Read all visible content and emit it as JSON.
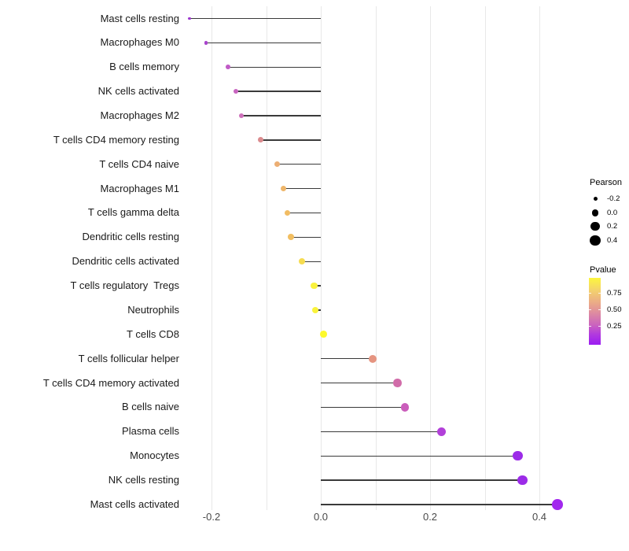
{
  "chart_data": {
    "type": "lollipop",
    "title": "",
    "xlabel": "",
    "ylabel": "",
    "x_ticks": [
      -0.2,
      0.0,
      0.2,
      0.4
    ],
    "x_tick_labels": [
      "-0.2",
      "0.0",
      "0.2",
      "0.4"
    ],
    "gridlines_x": [
      -0.2,
      -0.1,
      0.0,
      0.1,
      0.2,
      0.3,
      0.4
    ],
    "xlim": [
      -0.25,
      0.46
    ],
    "grid": true,
    "legend_position": "right",
    "rows": [
      {
        "label": "Mast cells resting",
        "pearson": -0.24,
        "color": "#9C36CE"
      },
      {
        "label": "Macrophages M0",
        "pearson": -0.21,
        "color": "#A843CC"
      },
      {
        "label": "B cells memory",
        "pearson": -0.17,
        "color": "#C05BC6"
      },
      {
        "label": "NK cells activated",
        "pearson": -0.155,
        "color": "#C865C0"
      },
      {
        "label": "Macrophages M2",
        "pearson": -0.145,
        "color": "#CD70BA"
      },
      {
        "label": "T cells CD4 memory resting",
        "pearson": -0.11,
        "color": "#DB8B8E"
      },
      {
        "label": "T cells CD4 naive",
        "pearson": -0.08,
        "color": "#ECAE73"
      },
      {
        "label": "Macrophages M1",
        "pearson": -0.068,
        "color": "#EFB66A"
      },
      {
        "label": "T cells gamma delta",
        "pearson": -0.061,
        "color": "#F1BC63"
      },
      {
        "label": "Dendritic cells resting",
        "pearson": -0.055,
        "color": "#F2BE61"
      },
      {
        "label": "Dendritic cells activated",
        "pearson": -0.034,
        "color": "#F6DC50"
      },
      {
        "label": "T cells regulatory  Tregs",
        "pearson": -0.012,
        "color": "#FAF23E"
      },
      {
        "label": "Neutrophils",
        "pearson": -0.01,
        "color": "#FAF33C"
      },
      {
        "label": "T cells CD8",
        "pearson": 0.005,
        "color": "#FDF92B"
      },
      {
        "label": "T cells follicular helper",
        "pearson": 0.095,
        "color": "#E59480"
      },
      {
        "label": "T cells CD4 memory activated",
        "pearson": 0.14,
        "color": "#D16CA9"
      },
      {
        "label": "B cells naive",
        "pearson": 0.154,
        "color": "#CA5DBB"
      },
      {
        "label": "Plasma cells",
        "pearson": 0.221,
        "color": "#B240D9"
      },
      {
        "label": "Monocytes",
        "pearson": 0.36,
        "color": "#9C2BE8"
      },
      {
        "label": "NK cells resting",
        "pearson": 0.369,
        "color": "#9C2BE8"
      },
      {
        "label": "Mast cells activated",
        "pearson": 0.433,
        "color": "#A228EE"
      }
    ],
    "size_scale": {
      "domain": [
        -0.25,
        0.44
      ],
      "radius_range": [
        1.8,
        6.8
      ]
    },
    "legend_size": {
      "title": "Pearson",
      "entries": [
        {
          "label": "-0.2",
          "value": -0.2
        },
        {
          "label": "0.0",
          "value": 0.0
        },
        {
          "label": "0.2",
          "value": 0.2
        },
        {
          "label": "0.4",
          "value": 0.4
        }
      ]
    },
    "legend_color": {
      "title": "Pvalue",
      "tick_labels": [
        "0.75",
        "0.50",
        "0.25"
      ],
      "gradient_top_to_bottom": [
        {
          "color": "#FCF63D",
          "pos": 0
        },
        {
          "color": "#F4D36C",
          "pos": 18
        },
        {
          "color": "#EAA988",
          "pos": 38
        },
        {
          "color": "#DE8CA0",
          "pos": 52
        },
        {
          "color": "#CB64BE",
          "pos": 70
        },
        {
          "color": "#B138DF",
          "pos": 85
        },
        {
          "color": "#9B1CF2",
          "pos": 100
        }
      ]
    }
  }
}
